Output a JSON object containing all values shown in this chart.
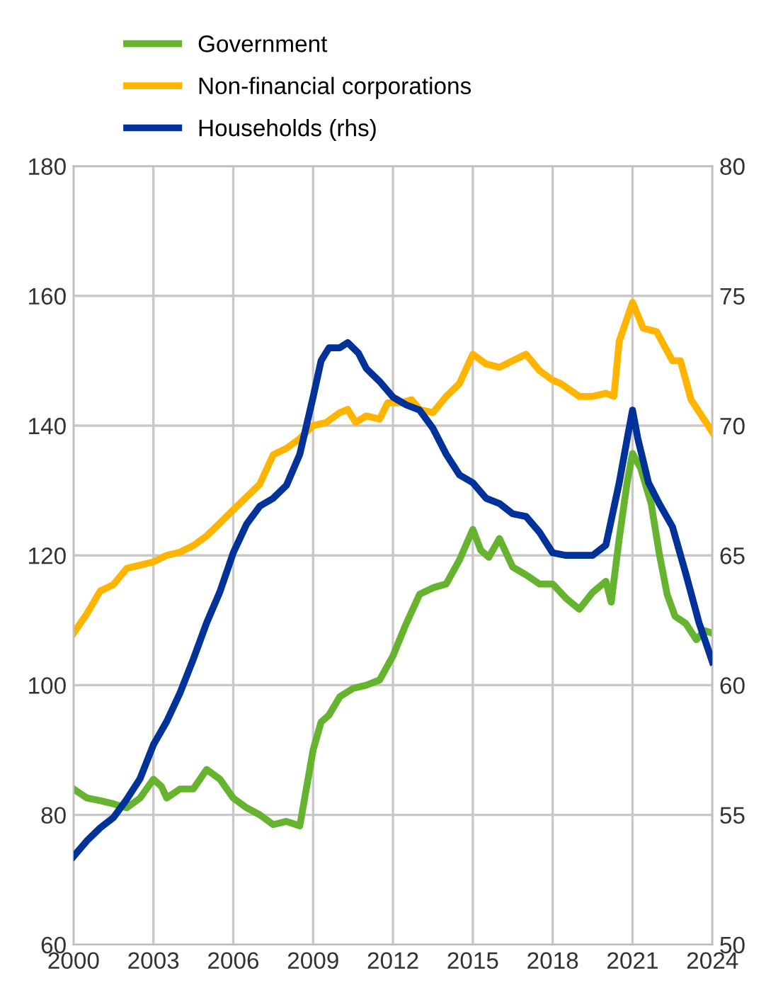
{
  "chart_data": {
    "type": "line",
    "series": [
      {
        "name": "Government",
        "color": "#65b32e",
        "x": [
          2000,
          2000.5,
          2001,
          2001.5,
          2002,
          2002.5,
          2003,
          2003.3,
          2003.5,
          2004,
          2004.5,
          2005,
          2005.5,
          2006,
          2006.5,
          2007,
          2007.5,
          2008,
          2008.5,
          2009,
          2009.3,
          2009.6,
          2010,
          2010.5,
          2011,
          2011.5,
          2012,
          2012.5,
          2013,
          2013.5,
          2014,
          2014.5,
          2015,
          2015.3,
          2015.6,
          2016,
          2016.5,
          2017,
          2017.5,
          2018,
          2018.5,
          2019,
          2019.5,
          2020,
          2020.2,
          2020.5,
          2020.8,
          2021,
          2021.3,
          2021.7,
          2022,
          2022.3,
          2022.6,
          2023,
          2023.4,
          2023.7,
          2024
        ],
        "values": [
          84,
          82.6,
          82.2,
          81.7,
          81.1,
          82.6,
          85.5,
          84.4,
          82.6,
          84,
          84,
          87,
          85.5,
          82.6,
          81.1,
          80,
          78.5,
          79,
          78.3,
          90,
          94.3,
          95.4,
          98.2,
          99.5,
          100,
          100.8,
          104.5,
          109.5,
          114,
          115,
          115.6,
          119.3,
          124,
          120.8,
          119.7,
          122.6,
          118.2,
          117,
          115.6,
          115.6,
          113.4,
          111.7,
          114.3,
          116,
          112.8,
          122.6,
          131.3,
          135.7,
          133.5,
          128,
          120.4,
          114,
          110.6,
          109.5,
          107,
          108.4,
          108
        ]
      },
      {
        "name": "Non-financial corporations",
        "color": "#ffb400",
        "x": [
          2000,
          2000.5,
          2001,
          2001.5,
          2002,
          2002.5,
          2003,
          2003.5,
          2004,
          2004.5,
          2005,
          2005.5,
          2006,
          2006.5,
          2007,
          2007.5,
          2008,
          2008.5,
          2009,
          2009.5,
          2010,
          2010.3,
          2010.6,
          2011,
          2011.5,
          2011.8,
          2012.3,
          2012.7,
          2013,
          2013.5,
          2014,
          2014.5,
          2015,
          2015.5,
          2016,
          2016.5,
          2017,
          2017.5,
          2018,
          2018.3,
          2019,
          2019.5,
          2020,
          2020.3,
          2020.5,
          2021,
          2021.4,
          2021.9,
          2022.5,
          2022.8,
          2023.2,
          2023.6,
          2024
        ],
        "values": [
          108,
          111,
          114.5,
          115.5,
          118,
          118.5,
          119,
          120,
          120.5,
          121.5,
          123,
          125,
          127,
          129,
          131,
          135.5,
          136.5,
          138,
          140,
          140.5,
          142,
          142.5,
          140.5,
          141.5,
          141,
          143.5,
          143.5,
          144,
          142.5,
          142,
          144.5,
          146.5,
          151,
          149.5,
          149,
          150,
          151,
          148.5,
          147,
          146.5,
          144.5,
          144.5,
          145,
          144.5,
          153,
          159,
          155,
          154.5,
          150,
          150,
          144,
          141.5,
          139
        ]
      },
      {
        "name": "Households (rhs)",
        "color": "#003299",
        "axis": "y2",
        "x": [
          2000,
          2000.5,
          2001,
          2001.5,
          2002,
          2002.5,
          2003,
          2003.5,
          2004,
          2004.5,
          2005,
          2005.5,
          2006,
          2006.5,
          2007,
          2007.5,
          2008,
          2008.5,
          2009,
          2009.3,
          2009.6,
          2010,
          2010.3,
          2010.7,
          2011,
          2011.5,
          2012,
          2012.5,
          2013,
          2013.5,
          2014,
          2014.5,
          2015,
          2015.5,
          2016,
          2016.5,
          2017,
          2017.5,
          2018,
          2018.5,
          2019,
          2019.5,
          2020,
          2020.5,
          2020.8,
          2021,
          2021.2,
          2021.6,
          2022,
          2022.5,
          2023,
          2023.5,
          2024
        ],
        "values": [
          53.4,
          54,
          54.5,
          54.9,
          55.6,
          56.4,
          57.7,
          58.6,
          59.7,
          61,
          62.4,
          63.6,
          65.1,
          66.2,
          66.9,
          67.2,
          67.7,
          68.9,
          71.1,
          72.5,
          73,
          73,
          73.2,
          72.8,
          72.2,
          71.7,
          71.1,
          70.8,
          70.6,
          69.9,
          68.9,
          68.1,
          67.8,
          67.2,
          67,
          66.6,
          66.5,
          65.9,
          65.1,
          65,
          65,
          65,
          65.4,
          67.8,
          69.5,
          70.6,
          69.5,
          67.8,
          67,
          66.1,
          64.3,
          62.4,
          60.9
        ]
      }
    ],
    "xlim": [
      2000,
      2024
    ],
    "xticks": [
      2000,
      2003,
      2006,
      2009,
      2012,
      2015,
      2018,
      2021,
      2024
    ],
    "ylim": [
      60,
      180
    ],
    "yticks": [
      60,
      80,
      100,
      120,
      140,
      160,
      180
    ],
    "y2lim": [
      50,
      80
    ],
    "y2ticks": [
      50,
      55,
      60,
      65,
      70,
      75,
      80
    ],
    "grid": true,
    "legend": "top left",
    "line_style": "solid",
    "marker": "none"
  }
}
